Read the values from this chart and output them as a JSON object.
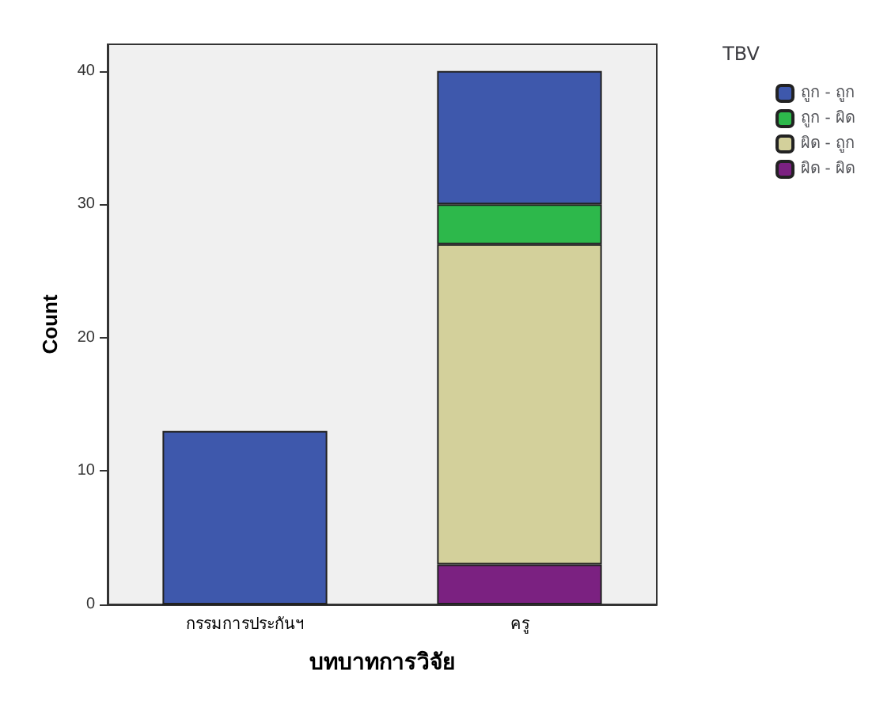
{
  "chart_data": {
    "type": "bar",
    "stacked": true,
    "xlabel": "บทบาทการวิจัย",
    "ylabel": "Count",
    "legend_title": "TBV",
    "legend": "top right",
    "grid": false,
    "categories": [
      "กรรมการประกันฯ",
      "ครู"
    ],
    "series": [
      {
        "name": "ผิด - ผิด",
        "color": "#7b2181",
        "values": [
          0,
          3
        ]
      },
      {
        "name": "ผิด - ถูก",
        "color": "#d3d09b",
        "values": [
          0,
          24
        ]
      },
      {
        "name": "ถูก - ผิด",
        "color": "#2db84b",
        "values": [
          0,
          3
        ]
      },
      {
        "name": "ถูก - ถูก",
        "color": "#3e58ac",
        "values": [
          13,
          10
        ]
      }
    ],
    "ylim": [
      0,
      42
    ],
    "yticks": [
      0,
      10,
      20,
      30,
      40
    ]
  }
}
